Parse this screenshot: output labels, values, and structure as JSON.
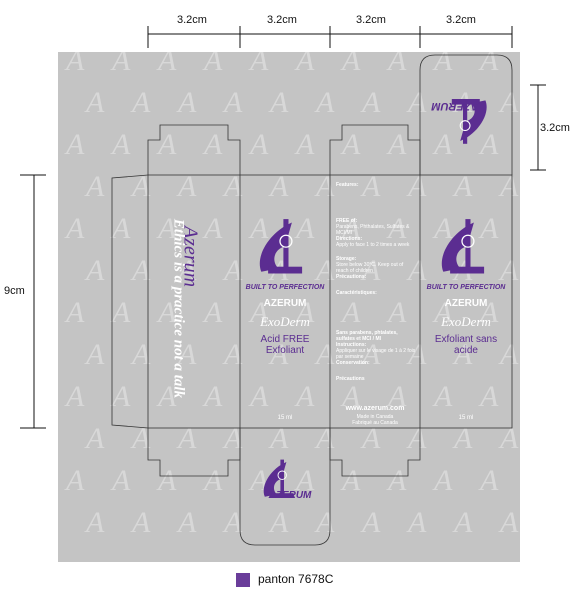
{
  "dimensions": {
    "panel_widths": [
      "3.2cm",
      "3.2cm",
      "3.2cm",
      "3.2cm"
    ],
    "flap_height": "3.2cm",
    "box_height": "9cm"
  },
  "brand": {
    "name": "AZERUM",
    "script_name": "Azerum",
    "tagline": "Ethics is a practice not a talk",
    "slogan": "BUILT TO PERFECTION",
    "product": "ExoDerm",
    "size": "15 ml"
  },
  "front_panel_en": {
    "brand": "AZERUM",
    "product": "ExoDerm",
    "descriptor_line1": "Acid FREE",
    "descriptor_line2": "Exfoliant",
    "size": "15 ml"
  },
  "front_panel_fr": {
    "brand": "AZERUM",
    "product": "ExoDerm",
    "descriptor_line1": "Exfoliant sans",
    "descriptor_line2": "acide",
    "size": "15 ml"
  },
  "info_panel": {
    "features_title": "Features:",
    "free_of_title": "FREE of:",
    "free_of_text": "Parabens, Phthalates, Sulfates & MCI/MI",
    "directions_title": "Directions:",
    "directions_text": "Apply to face 1 to 2 times a week",
    "storage_title": "Storage:",
    "storage_text": "Store below 30°C. Keep out of reach of children",
    "precautions_title": "Précautions:",
    "caracteristiques_title": "Caractéristiques:",
    "sans_title": "Sans parabens, phtalates, sulfates et MCI / MI",
    "instructions_title": "Instructions:",
    "instructions_text": "Appliquer sur le visage de 1 à 2 fois par semaine",
    "conservation_title": "Conservation:",
    "precautions2_title": "Précautions",
    "website": "www.azerum.com",
    "made_in_en": "Made in Canada",
    "made_in_fr": "Fabriqué au Canada"
  },
  "legend": {
    "label": "panton 7678C",
    "color": "#6a3d9a"
  },
  "colors": {
    "dieline_background": "#c4c4c4",
    "brand_violet": "#5b2d91",
    "text_white": "#ffffff"
  }
}
